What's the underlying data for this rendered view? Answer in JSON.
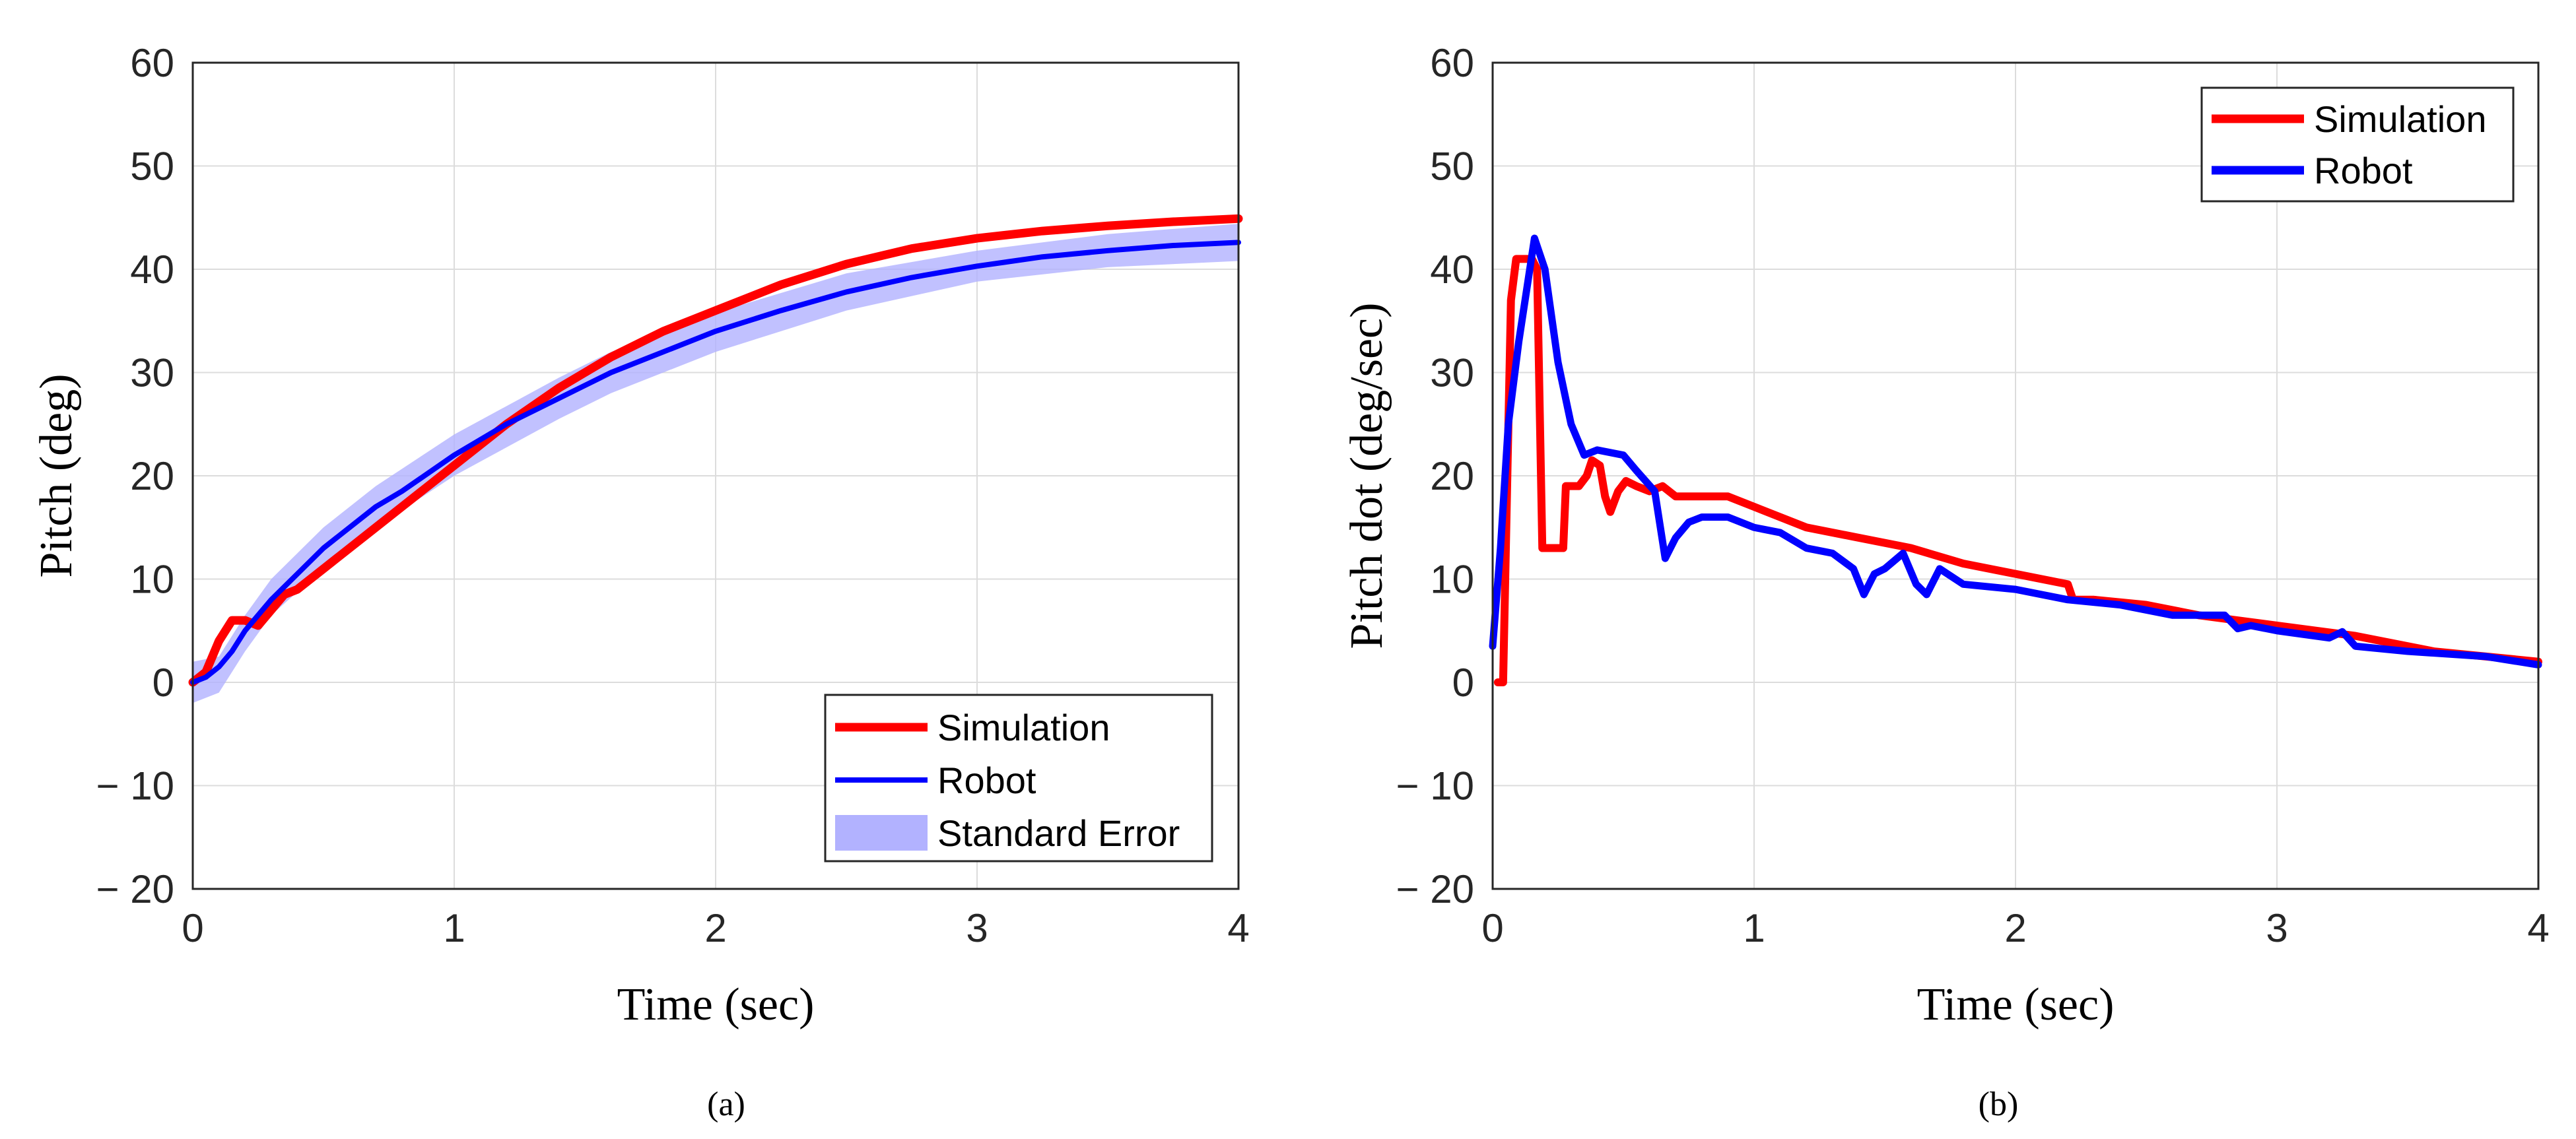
{
  "chart_data": [
    {
      "type": "line",
      "panel": "a",
      "caption": "(a)",
      "xlabel": "Time (sec)",
      "ylabel": "Pitch (deg)",
      "xlim": [
        0,
        4
      ],
      "ylim": [
        -20,
        60
      ],
      "xticks": [
        0,
        1,
        2,
        3,
        4
      ],
      "xtick_labels": [
        "0",
        "1",
        "2",
        "3",
        "4"
      ],
      "yticks": [
        -20,
        -10,
        0,
        10,
        20,
        30,
        40,
        50,
        60
      ],
      "ytick_labels": [
        "− 20",
        "− 10",
        "0",
        "10",
        "20",
        "30",
        "40",
        "50",
        "60"
      ],
      "grid": true,
      "legend": {
        "position": "bottom-right",
        "entries": [
          "Simulation",
          "Robot",
          "Standard Error"
        ]
      },
      "series": [
        {
          "name": "Simulation",
          "color": "#ff0000",
          "x": [
            0,
            0.05,
            0.1,
            0.15,
            0.2,
            0.25,
            0.3,
            0.35,
            0.4,
            0.5,
            0.6,
            0.7,
            0.8,
            1.0,
            1.2,
            1.4,
            1.6,
            1.8,
            2.0,
            2.25,
            2.5,
            2.75,
            3.0,
            3.25,
            3.5,
            3.75,
            4.0
          ],
          "y": [
            0,
            1,
            4,
            6,
            6,
            5.5,
            7,
            8.5,
            9,
            11,
            13,
            15,
            17,
            21,
            25,
            28.5,
            31.5,
            34,
            36,
            38.5,
            40.5,
            42,
            43,
            43.7,
            44.2,
            44.6,
            44.9
          ]
        },
        {
          "name": "Robot",
          "color": "#0000ff",
          "x": [
            0,
            0.05,
            0.1,
            0.15,
            0.2,
            0.3,
            0.4,
            0.5,
            0.6,
            0.7,
            0.8,
            1.0,
            1.2,
            1.4,
            1.6,
            1.8,
            2.0,
            2.25,
            2.5,
            2.75,
            3.0,
            3.25,
            3.5,
            3.75,
            4.0
          ],
          "y": [
            0,
            0.5,
            1.5,
            3,
            5,
            8,
            10.5,
            13,
            15,
            17,
            18.5,
            22,
            25,
            27.5,
            30,
            32,
            34,
            36,
            37.8,
            39.2,
            40.3,
            41.2,
            41.8,
            42.3,
            42.6
          ]
        },
        {
          "name": "Standard Error",
          "color": "#b2b2ff",
          "type": "band",
          "x": [
            0,
            0.1,
            0.2,
            0.3,
            0.5,
            0.7,
            1.0,
            1.4,
            1.6,
            2.0,
            2.5,
            3.0,
            3.5,
            4.0
          ],
          "lower": [
            -2,
            -1,
            3,
            6.5,
            11,
            15,
            20,
            25.5,
            28,
            32,
            36,
            38.8,
            40.2,
            40.8
          ],
          "upper": [
            2,
            2.5,
            6.5,
            10,
            15,
            19,
            24,
            29.5,
            32,
            35.8,
            39.6,
            41.8,
            43.4,
            44.4
          ]
        }
      ]
    },
    {
      "type": "line",
      "panel": "b",
      "caption": "(b)",
      "xlabel": "Time (sec)",
      "ylabel": "Pitch dot (deg/sec)",
      "xlim": [
        0,
        4
      ],
      "ylim": [
        -20,
        60
      ],
      "xticks": [
        0,
        1,
        2,
        3,
        4
      ],
      "xtick_labels": [
        "0",
        "1",
        "2",
        "3",
        "4"
      ],
      "yticks": [
        -20,
        -10,
        0,
        10,
        20,
        30,
        40,
        50,
        60
      ],
      "ytick_labels": [
        "− 20",
        "− 10",
        "0",
        "10",
        "20",
        "30",
        "40",
        "50",
        "60"
      ],
      "grid": true,
      "legend": {
        "position": "top-right",
        "entries": [
          "Simulation",
          "Robot"
        ]
      },
      "series": [
        {
          "name": "Simulation",
          "color": "#ff0000",
          "x": [
            0.02,
            0.04,
            0.07,
            0.09,
            0.12,
            0.15,
            0.17,
            0.19,
            0.21,
            0.27,
            0.28,
            0.3,
            0.33,
            0.36,
            0.38,
            0.41,
            0.43,
            0.45,
            0.48,
            0.51,
            0.55,
            0.6,
            0.65,
            0.7,
            0.8,
            0.9,
            1.0,
            1.2,
            1.4,
            1.6,
            1.8,
            2.0,
            2.1,
            2.2,
            2.22,
            2.3,
            2.5,
            2.7,
            3.0,
            3.3,
            3.6,
            4.0
          ],
          "y": [
            0,
            0,
            37,
            41,
            41,
            41,
            40,
            13,
            13,
            13,
            19,
            19,
            19,
            20,
            21.5,
            21,
            18,
            16.5,
            18.5,
            19.5,
            19,
            18.5,
            19,
            18,
            18,
            18,
            17,
            15,
            14,
            13,
            11.5,
            10.5,
            10,
            9.5,
            8,
            8,
            7.5,
            6.5,
            5.5,
            4.5,
            3,
            2
          ]
        },
        {
          "name": "Robot",
          "color": "#0000ff",
          "x": [
            0,
            0.03,
            0.06,
            0.1,
            0.13,
            0.16,
            0.2,
            0.25,
            0.3,
            0.35,
            0.4,
            0.5,
            0.55,
            0.62,
            0.66,
            0.7,
            0.75,
            0.8,
            0.9,
            1.0,
            1.1,
            1.2,
            1.3,
            1.38,
            1.42,
            1.46,
            1.5,
            1.57,
            1.62,
            1.66,
            1.71,
            1.8,
            2.0,
            2.2,
            2.4,
            2.6,
            2.8,
            2.85,
            2.9,
            3.0,
            3.2,
            3.25,
            3.3,
            3.5,
            3.8,
            4.0
          ],
          "y": [
            3.5,
            13,
            25,
            33,
            38,
            43,
            40,
            31,
            25,
            22,
            22.5,
            22,
            20.5,
            18.5,
            12,
            14,
            15.5,
            16,
            16,
            15,
            14.5,
            13,
            12.5,
            11,
            8.5,
            10.5,
            11,
            12.5,
            9.5,
            8.5,
            11,
            9.5,
            9,
            8,
            7.5,
            6.5,
            6.5,
            5.2,
            5.5,
            5,
            4.3,
            4.9,
            3.5,
            3,
            2.5,
            1.7
          ]
        }
      ]
    }
  ]
}
